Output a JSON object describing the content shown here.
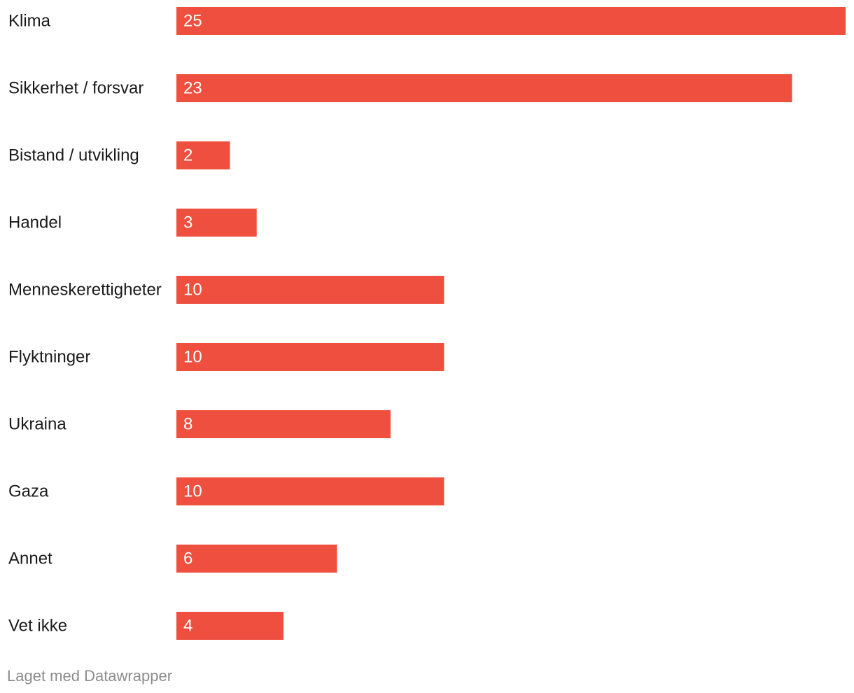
{
  "chart_data": {
    "type": "bar",
    "orientation": "horizontal",
    "categories": [
      "Klima",
      "Sikkerhet / forsvar",
      "Bistand / utvikling",
      "Handel",
      "Menneskerettigheter",
      "Flyktninger",
      "Ukraina",
      "Gaza",
      "Annet",
      "Vet ikke"
    ],
    "values": [
      25,
      23,
      2,
      3,
      10,
      10,
      8,
      10,
      6,
      4
    ],
    "title": "",
    "xlabel": "",
    "ylabel": "",
    "xlim": [
      0,
      25
    ],
    "grid": false,
    "bar_color": "#ee4f3f",
    "label_color": "#1a1a1a",
    "value_label_color": "#ffffff"
  },
  "footer": {
    "credit": "Laget med Datawrapper"
  }
}
